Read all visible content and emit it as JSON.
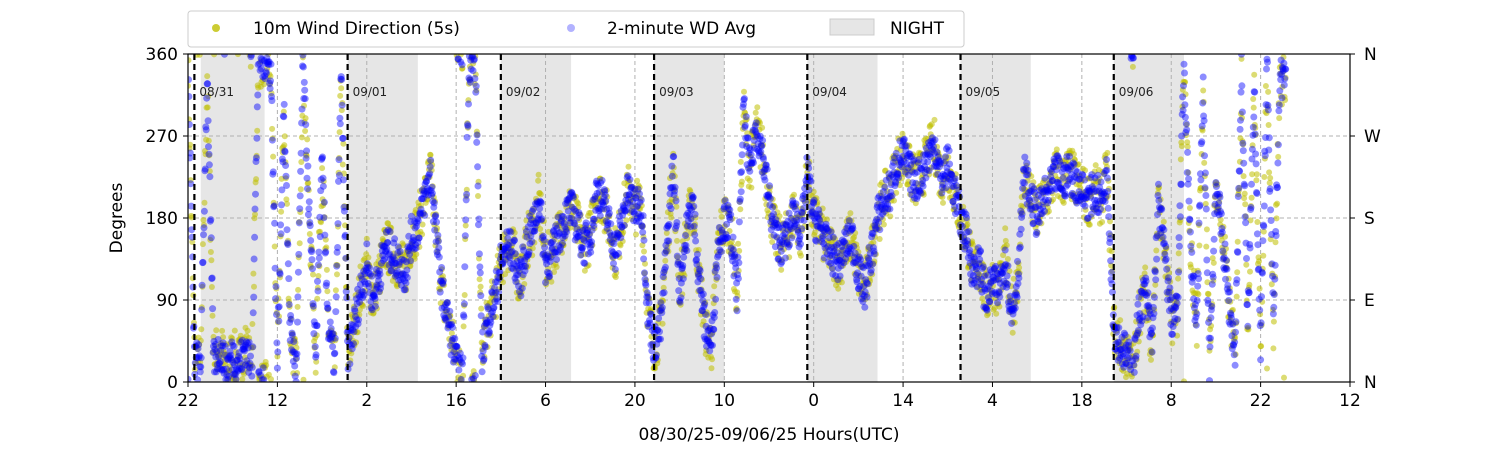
{
  "chart_data": {
    "type": "scatter",
    "xlabel": "08/30/25-09/06/25  Hours(UTC)",
    "ylabel": "Degrees",
    "ylim": [
      0,
      360
    ],
    "x_start": "08/30/25 22:00 UTC",
    "x_range_hours": [
      0,
      182
    ],
    "x_tick_labels": [
      "22",
      "12",
      "2",
      "16",
      "6",
      "20",
      "10",
      "0",
      "14",
      "4",
      "18",
      "8",
      "22",
      "12"
    ],
    "y_ticks": [
      0,
      90,
      180,
      270,
      360
    ],
    "y_tick_labels": [
      "0",
      "90",
      "180",
      "270",
      "360"
    ],
    "right_axis_labels": [
      "N",
      "E",
      "S",
      "W",
      "N"
    ],
    "grid": true,
    "legend": {
      "placement": "top-center-outside",
      "entries": [
        "10m Wind Direction (5s)",
        "2-minute WD Avg",
        "NIGHT"
      ]
    },
    "colors": {
      "wind_5s": "#bfbf00",
      "wd_avg": "#0000ff",
      "night": "#e6e6e6",
      "day_divider": "#000000",
      "grid": "#b0b0b0"
    },
    "day_boundaries": [
      {
        "label": "08/31",
        "hour": 1
      },
      {
        "label": "09/01",
        "hour": 25
      },
      {
        "label": "09/02",
        "hour": 49
      },
      {
        "label": "09/03",
        "hour": 73
      },
      {
        "label": "09/04",
        "hour": 97
      },
      {
        "label": "09/05",
        "hour": 121
      },
      {
        "label": "09/06",
        "hour": 145
      }
    ],
    "night_periods_hours": [
      [
        2,
        12
      ],
      [
        25,
        36
      ],
      [
        49,
        60
      ],
      [
        73,
        84
      ],
      [
        97,
        108
      ],
      [
        121,
        132
      ],
      [
        145,
        156
      ]
    ],
    "series": [
      {
        "name": "10m Wind Direction (5s)",
        "x_hours": [
          0,
          1,
          2,
          3,
          4,
          5,
          6,
          7,
          8,
          9,
          10,
          11,
          12,
          13,
          14,
          15,
          16,
          17,
          18,
          19,
          20,
          21,
          22,
          23,
          24,
          25,
          26,
          27,
          28,
          29,
          30,
          31,
          32,
          33,
          34,
          35,
          36,
          37,
          38,
          39,
          40,
          41,
          42,
          43,
          44,
          45,
          46,
          47,
          48,
          49,
          50,
          51,
          52,
          53,
          54,
          55,
          56,
          57,
          58,
          59,
          60,
          61,
          62,
          63,
          64,
          65,
          66,
          67,
          68,
          69,
          70,
          71,
          72,
          73,
          74,
          75,
          76,
          77,
          78,
          79,
          80,
          81,
          82,
          83,
          84,
          85,
          86,
          87,
          88,
          89,
          90,
          91,
          92,
          93,
          94,
          95,
          96,
          97,
          98,
          99,
          100,
          101,
          102,
          103,
          104,
          105,
          106,
          107,
          108,
          109,
          110,
          111,
          112,
          113,
          114,
          115,
          116,
          117,
          118,
          119,
          120,
          121,
          122,
          123,
          124,
          125,
          126,
          127,
          128,
          129,
          130,
          131,
          132,
          133,
          134,
          135,
          136,
          137,
          138,
          139,
          140,
          141,
          142,
          143,
          144,
          145,
          146,
          147,
          148,
          149,
          150,
          151,
          152,
          153,
          154,
          155,
          156,
          157,
          158,
          159,
          160,
          161,
          162,
          163,
          164,
          165,
          166,
          167,
          168,
          169,
          170,
          171,
          172
        ],
        "y_deg": [
          355,
          30,
          20,
          340,
          25,
          40,
          15,
          30,
          20,
          45,
          10,
          350,
          355,
          340,
          20,
          300,
          60,
          10,
          350,
          180,
          30,
          240,
          60,
          20,
          340,
          30,
          60,
          100,
          130,
          90,
          120,
          150,
          140,
          130,
          120,
          160,
          170,
          200,
          230,
          150,
          90,
          60,
          20,
          5,
          350,
          350,
          30,
          70,
          90,
          130,
          150,
          140,
          110,
          150,
          170,
          200,
          130,
          140,
          160,
          180,
          190,
          170,
          150,
          160,
          210,
          200,
          170,
          140,
          180,
          210,
          190,
          200,
          80,
          40,
          60,
          150,
          240,
          100,
          160,
          200,
          120,
          60,
          40,
          150,
          180,
          170,
          90,
          300,
          230,
          280,
          250,
          200,
          160,
          150,
          160,
          190,
          160,
          230,
          180,
          170,
          150,
          140,
          130,
          150,
          160,
          120,
          100,
          140,
          180,
          200,
          210,
          240,
          250,
          230,
          220,
          230,
          250,
          260,
          220,
          240,
          210,
          180,
          160,
          120,
          130,
          90,
          110,
          100,
          140,
          70,
          120,
          230,
          200,
          180,
          200,
          210,
          230,
          220,
          230,
          220,
          210,
          200,
          210,
          200,
          230,
          60,
          40,
          30,
          10,
          80,
          100,
          40,
          200,
          140,
          70,
          80,
          350,
          150,
          60,
          320,
          20,
          220,
          160,
          90,
          30,
          340,
          60,
          330,
          30,
          350,
          60,
          330,
          340
        ],
        "spread": 30
      },
      {
        "name": "2-minute WD Avg",
        "x_hours": [
          0,
          1,
          2,
          3,
          4,
          5,
          6,
          7,
          8,
          9,
          10,
          11,
          12,
          13,
          14,
          15,
          16,
          17,
          18,
          19,
          20,
          21,
          22,
          23,
          24,
          25,
          26,
          27,
          28,
          29,
          30,
          31,
          32,
          33,
          34,
          35,
          36,
          37,
          38,
          39,
          40,
          41,
          42,
          43,
          44,
          45,
          46,
          47,
          48,
          49,
          50,
          51,
          52,
          53,
          54,
          55,
          56,
          57,
          58,
          59,
          60,
          61,
          62,
          63,
          64,
          65,
          66,
          67,
          68,
          69,
          70,
          71,
          72,
          73,
          74,
          75,
          76,
          77,
          78,
          79,
          80,
          81,
          82,
          83,
          84,
          85,
          86,
          87,
          88,
          89,
          90,
          91,
          92,
          93,
          94,
          95,
          96,
          97,
          98,
          99,
          100,
          101,
          102,
          103,
          104,
          105,
          106,
          107,
          108,
          109,
          110,
          111,
          112,
          113,
          114,
          115,
          116,
          117,
          118,
          119,
          120,
          121,
          122,
          123,
          124,
          125,
          126,
          127,
          128,
          129,
          130,
          131,
          132,
          133,
          134,
          135,
          136,
          137,
          138,
          139,
          140,
          141,
          142,
          143,
          144,
          145,
          146,
          147,
          148,
          149,
          150,
          151,
          152,
          153,
          154,
          155,
          156,
          157,
          158,
          159,
          160,
          161,
          162,
          163,
          164,
          165,
          166,
          167,
          168,
          169,
          170,
          171,
          172
        ],
        "y_deg": [
          355,
          25,
          20,
          340,
          25,
          35,
          15,
          30,
          20,
          40,
          10,
          350,
          355,
          340,
          20,
          300,
          60,
          10,
          350,
          180,
          30,
          240,
          60,
          20,
          340,
          30,
          60,
          100,
          130,
          90,
          120,
          150,
          140,
          130,
          120,
          160,
          170,
          200,
          230,
          150,
          90,
          60,
          20,
          5,
          350,
          350,
          30,
          70,
          90,
          130,
          150,
          140,
          110,
          150,
          170,
          200,
          130,
          140,
          160,
          180,
          190,
          170,
          150,
          160,
          210,
          200,
          170,
          140,
          180,
          210,
          190,
          200,
          80,
          40,
          60,
          150,
          240,
          100,
          160,
          200,
          120,
          60,
          40,
          150,
          180,
          170,
          90,
          300,
          230,
          280,
          250,
          200,
          160,
          150,
          160,
          190,
          160,
          230,
          180,
          170,
          150,
          140,
          130,
          150,
          160,
          120,
          100,
          140,
          180,
          200,
          210,
          240,
          250,
          230,
          220,
          230,
          250,
          260,
          220,
          240,
          210,
          180,
          160,
          120,
          130,
          90,
          110,
          100,
          140,
          70,
          120,
          230,
          200,
          180,
          200,
          210,
          230,
          220,
          230,
          220,
          210,
          200,
          210,
          200,
          230,
          60,
          40,
          30,
          10,
          80,
          100,
          40,
          200,
          140,
          70,
          80,
          350,
          150,
          60,
          320,
          20,
          220,
          160,
          90,
          30,
          340,
          60,
          330,
          30,
          350,
          60,
          330,
          340
        ],
        "spread": 22
      }
    ]
  }
}
